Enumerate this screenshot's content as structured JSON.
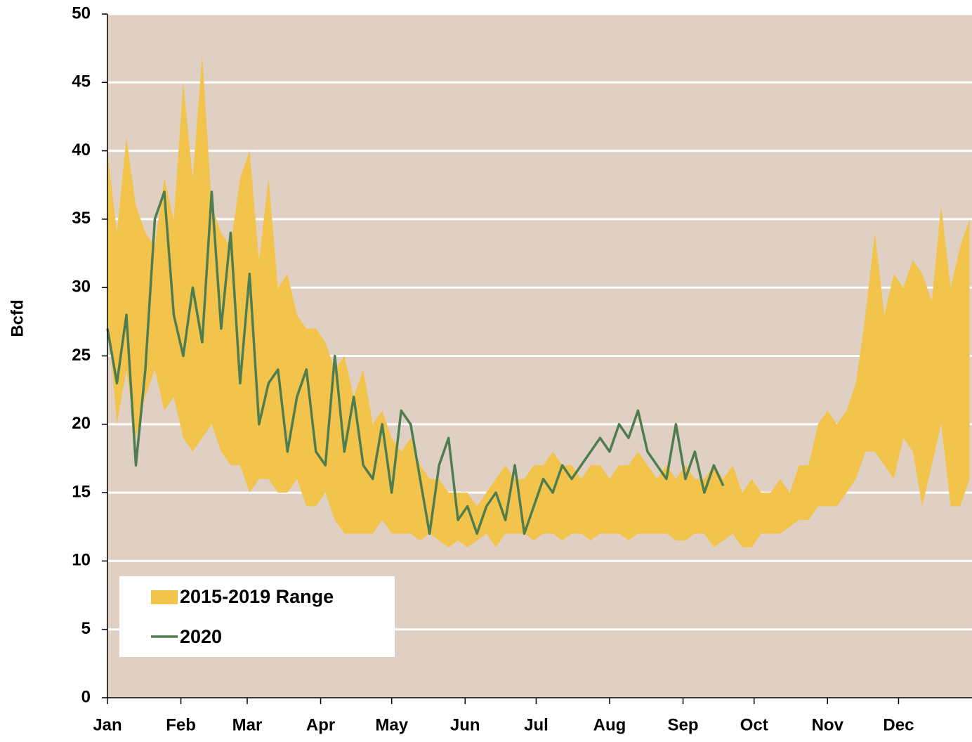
{
  "chart_data": {
    "type": "range-line",
    "y_label": "Bcfd",
    "xlim": [
      1,
      365
    ],
    "xticks": [
      {
        "value": 1,
        "label": "Jan"
      },
      {
        "value": 32,
        "label": "Feb"
      },
      {
        "value": 60,
        "label": "Mar"
      },
      {
        "value": 91,
        "label": "Apr"
      },
      {
        "value": 121,
        "label": "May"
      },
      {
        "value": 152,
        "label": "Jun"
      },
      {
        "value": 182,
        "label": "Jul"
      },
      {
        "value": 213,
        "label": "Aug"
      },
      {
        "value": 244,
        "label": "Sep"
      },
      {
        "value": 274,
        "label": "Oct"
      },
      {
        "value": 305,
        "label": "Nov"
      },
      {
        "value": 335,
        "label": "Dec"
      }
    ],
    "ylim": [
      0,
      50
    ],
    "yticks": [
      0,
      5,
      10,
      15,
      20,
      25,
      30,
      35,
      40,
      45,
      50
    ],
    "grid": true,
    "background": "#e0d0c4",
    "x": [
      1,
      5,
      9,
      13,
      17,
      21,
      25,
      29,
      33,
      37,
      41,
      45,
      49,
      53,
      57,
      61,
      65,
      69,
      73,
      77,
      81,
      85,
      89,
      93,
      97,
      101,
      105,
      109,
      113,
      117,
      121,
      125,
      129,
      133,
      137,
      141,
      145,
      149,
      153,
      157,
      161,
      165,
      169,
      173,
      177,
      181,
      185,
      189,
      193,
      197,
      201,
      205,
      209,
      213,
      217,
      221,
      225,
      229,
      233,
      237,
      241,
      245,
      249,
      253,
      257,
      261,
      265,
      269,
      273,
      277,
      281,
      285,
      289,
      293,
      297,
      301,
      305,
      309,
      313,
      317,
      321,
      325,
      329,
      333,
      337,
      341,
      345,
      349,
      353,
      357,
      361,
      365
    ],
    "range": {
      "name": "2015-2019 Range",
      "color": "#f2c44c",
      "high": [
        40,
        34,
        41,
        36,
        34,
        33,
        38,
        35,
        45,
        38,
        47,
        36,
        34,
        33,
        38,
        40,
        32,
        38,
        30,
        31,
        28,
        27,
        27,
        26,
        24,
        25,
        22,
        24,
        20,
        21,
        19,
        18,
        19,
        17,
        16,
        16,
        15,
        15,
        15,
        14,
        15,
        16,
        17,
        16,
        16,
        17,
        17,
        18,
        17,
        17,
        16,
        17,
        17,
        16,
        17,
        17,
        18,
        17,
        16,
        17,
        16,
        17,
        16,
        16,
        17,
        16,
        17,
        15,
        16,
        15,
        15,
        16,
        15,
        17,
        17,
        20,
        21,
        20,
        21,
        23,
        28,
        34,
        28,
        31,
        30,
        32,
        31,
        29,
        36,
        30,
        33,
        35
      ],
      "low": [
        28,
        20,
        24,
        19,
        22,
        24,
        21,
        22,
        19,
        18,
        19,
        20,
        18,
        17,
        17,
        15,
        16,
        16,
        15,
        15,
        16,
        14,
        14,
        15,
        13,
        12,
        12,
        12,
        12,
        13,
        12,
        12,
        12,
        11.5,
        12,
        11.5,
        11,
        11.5,
        11,
        11.5,
        12,
        11,
        12,
        12,
        12,
        11.5,
        12,
        12,
        11.5,
        12,
        12,
        11.5,
        12,
        12,
        12,
        11.5,
        12,
        12,
        12,
        12,
        11.5,
        11.5,
        12,
        12,
        11,
        11.5,
        12,
        11,
        11,
        12,
        12,
        12,
        12.5,
        13,
        13,
        14,
        14,
        14,
        15,
        16,
        18,
        18,
        17,
        16,
        19,
        18,
        14,
        17,
        20,
        14,
        14,
        16
      ]
    },
    "series": [
      {
        "name": "2020",
        "color": "#4f7d4f",
        "values": [
          27,
          23,
          28,
          17,
          24,
          35,
          37,
          28,
          25,
          30,
          26,
          37,
          27,
          34,
          23,
          31,
          20,
          23,
          24,
          18,
          22,
          24,
          18,
          17,
          25,
          18,
          22,
          17,
          16,
          20,
          15,
          21,
          20,
          16,
          12,
          17,
          19,
          13,
          14,
          12,
          14,
          15,
          13,
          17,
          12,
          14,
          16,
          15,
          17,
          16,
          17,
          18,
          19,
          18,
          20,
          19,
          21,
          18,
          17,
          16,
          20,
          16,
          18,
          15,
          17,
          15.5,
          null,
          null,
          null,
          null,
          null,
          null,
          null,
          null,
          null,
          null,
          null,
          null,
          null,
          null,
          null,
          null,
          null,
          null,
          null,
          null,
          null,
          null,
          null,
          null,
          null,
          null
        ]
      }
    ],
    "legend": "lower-left"
  }
}
